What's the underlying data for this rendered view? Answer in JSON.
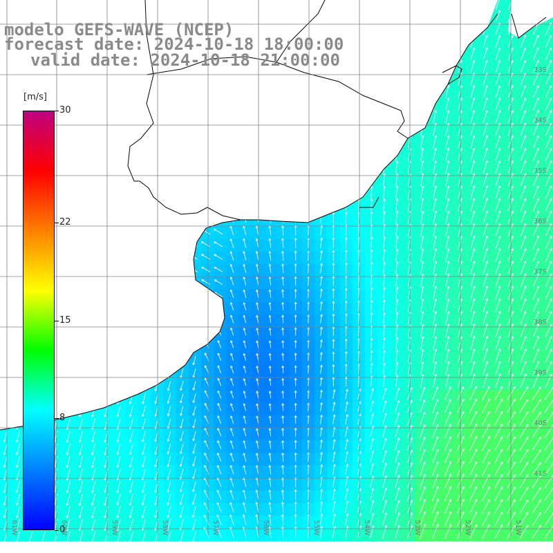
{
  "header": {
    "line1": "modelo GEFS-WAVE (NCEP)",
    "line2": "forecast date: 2024-10-18 18:00:00",
    "line3": "valid date: 2024-10-18 21:00:00"
  },
  "colorbar": {
    "unit": "[m/s]",
    "ticks": [
      "30",
      "22",
      "15",
      "8",
      "0"
    ],
    "tick_values": [
      30,
      22,
      15,
      8,
      0
    ],
    "range": [
      0,
      30
    ],
    "colors": [
      "#0000ff",
      "#0080ff",
      "#00ffff",
      "#00ff00",
      "#ffff00",
      "#ff8000",
      "#ff0000",
      "#c00080"
    ]
  },
  "map": {
    "lon_labels": [
      "61W",
      "60W",
      "59W",
      "58W",
      "57W",
      "56W",
      "55W",
      "54W",
      "53W",
      "52W",
      "51W"
    ],
    "lat_labels": [
      "33S",
      "34S",
      "35S",
      "36S",
      "37S",
      "38S",
      "39S",
      "40S",
      "41S"
    ],
    "land_color": "#ffffff",
    "grid_color": "#808080",
    "coast_color": "#000000",
    "arrow_color": "#ffffff"
  }
}
